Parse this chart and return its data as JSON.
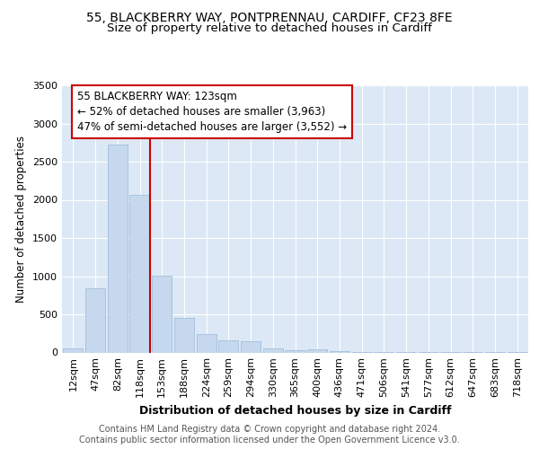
{
  "title": "55, BLACKBERRY WAY, PONTPRENNAU, CARDIFF, CF23 8FE",
  "subtitle": "Size of property relative to detached houses in Cardiff",
  "xlabel": "Distribution of detached houses by size in Cardiff",
  "ylabel": "Number of detached properties",
  "categories": [
    "12sqm",
    "47sqm",
    "82sqm",
    "118sqm",
    "153sqm",
    "188sqm",
    "224sqm",
    "259sqm",
    "294sqm",
    "330sqm",
    "365sqm",
    "400sqm",
    "436sqm",
    "471sqm",
    "506sqm",
    "541sqm",
    "577sqm",
    "612sqm",
    "647sqm",
    "683sqm",
    "718sqm"
  ],
  "values": [
    55,
    840,
    2720,
    2065,
    1010,
    455,
    240,
    155,
    145,
    55,
    25,
    45,
    20,
    10,
    10,
    5,
    3,
    2,
    2,
    1,
    1
  ],
  "bar_color": "#c5d8ed",
  "bar_edge_color": "#9ab8d8",
  "property_line_x": 3,
  "annotation_text": "55 BLACKBERRY WAY: 123sqm\n← 52% of detached houses are smaller (3,963)\n47% of semi-detached houses are larger (3,552) →",
  "annotation_box_color": "#ffffff",
  "annotation_box_edge_color": "#cc0000",
  "line_color": "#cc0000",
  "ylim": [
    0,
    3500
  ],
  "yticks": [
    0,
    500,
    1000,
    1500,
    2000,
    2500,
    3000,
    3500
  ],
  "background_color": "#dce8f5",
  "grid_color": "#ffffff",
  "footer": "Contains HM Land Registry data © Crown copyright and database right 2024.\nContains public sector information licensed under the Open Government Licence v3.0.",
  "title_fontsize": 10,
  "subtitle_fontsize": 9.5,
  "xlabel_fontsize": 9,
  "ylabel_fontsize": 8.5,
  "tick_fontsize": 8,
  "footer_fontsize": 7,
  "ann_fontsize": 8.5
}
